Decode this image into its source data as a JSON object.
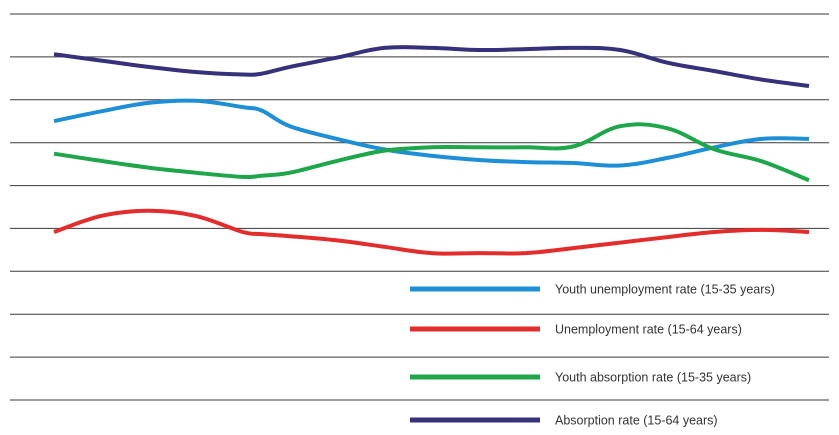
{
  "chart_data": {
    "type": "line",
    "grid": true,
    "legend_position": "bottom-right",
    "x": [
      0,
      0.5,
      1,
      1.5,
      2,
      2.2,
      2.5,
      3,
      3.5,
      4,
      4.5,
      5,
      5.5,
      6,
      6.5,
      7,
      7.5,
      8
    ],
    "series": [
      {
        "name": "Youth unemployment rate (15-35 years)",
        "color": "#1e8fd6",
        "values": [
          2.62,
          2.85,
          3.05,
          3.1,
          2.95,
          2.87,
          2.5,
          2.2,
          1.95,
          1.8,
          1.7,
          1.65,
          1.63,
          1.57,
          1.75,
          2.0,
          2.2,
          2.2
        ]
      },
      {
        "name": "Unemployment rate (15-64 years)",
        "color": "#e32c2c",
        "values": [
          0.0,
          0.38,
          0.5,
          0.38,
          0.0,
          -0.05,
          -0.1,
          -0.2,
          -0.35,
          -0.5,
          -0.5,
          -0.5,
          -0.38,
          -0.25,
          -0.12,
          0.0,
          0.05,
          0.0
        ]
      },
      {
        "name": "Youth absorption rate (15-35 years)",
        "color": "#1fa64a",
        "values": [
          1.85,
          1.68,
          1.52,
          1.4,
          1.3,
          1.33,
          1.4,
          1.68,
          1.92,
          2.0,
          2.0,
          2.0,
          2.02,
          2.5,
          2.45,
          1.95,
          1.67,
          1.22
        ]
      },
      {
        "name": "Absorption rate (15-64 years)",
        "color": "#35317a",
        "values": [
          4.2,
          4.05,
          3.9,
          3.78,
          3.72,
          3.74,
          3.9,
          4.12,
          4.35,
          4.35,
          4.3,
          4.32,
          4.35,
          4.3,
          4.0,
          3.8,
          3.6,
          3.45
        ]
      }
    ],
    "ylim": [
      -3.97,
      5.15
    ]
  }
}
